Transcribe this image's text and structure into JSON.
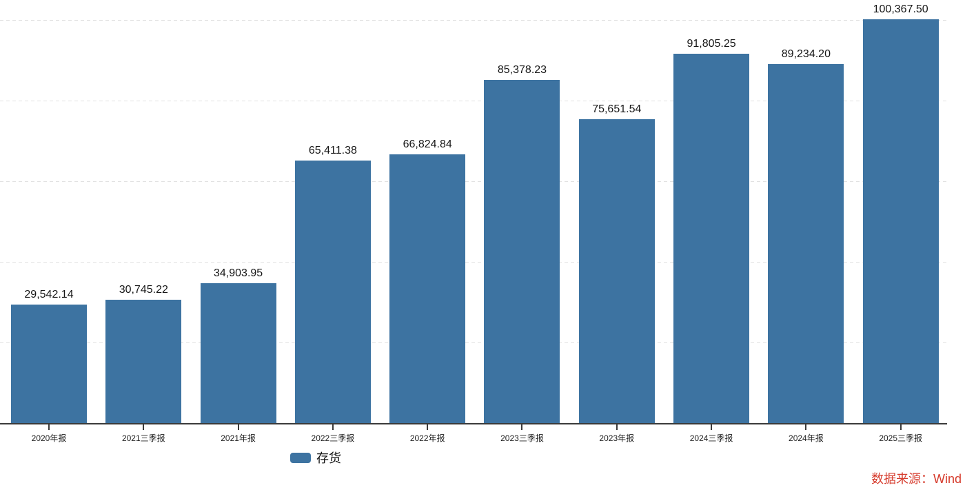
{
  "chart_data": {
    "type": "bar",
    "title": "",
    "xlabel": "",
    "ylabel": "",
    "categories": [
      "2020年报",
      "2021三季报",
      "2021年报",
      "2022三季报",
      "2022年报",
      "2023三季报",
      "2023年报",
      "2024三季报",
      "2024年报",
      "2025三季报"
    ],
    "series": [
      {
        "name": "存货",
        "color": "#3d73a1",
        "values": [
          29542.14,
          30745.22,
          34903.95,
          65411.38,
          66824.84,
          85378.23,
          75651.54,
          91805.25,
          89234.2,
          100367.5
        ]
      }
    ],
    "value_labels": [
      "29,542.14",
      "30,745.22",
      "34,903.95",
      "65,411.38",
      "66,824.84",
      "85,378.23",
      "75,651.54",
      "91,805.25",
      "89,234.20",
      "100,367.50"
    ],
    "ylim": [
      0,
      105200
    ],
    "gridline_values": [
      20000,
      40000,
      60000,
      80000,
      100000
    ],
    "grid": "horizontal-dashed",
    "y_tick_labels_visible": false,
    "value_label_position": "top",
    "legend_position": "bottom"
  },
  "legend": {
    "label": "存货",
    "swatch_color": "#3d73a1"
  },
  "source_note": {
    "text": "数据来源：Wind",
    "color": "#d63b2c"
  }
}
